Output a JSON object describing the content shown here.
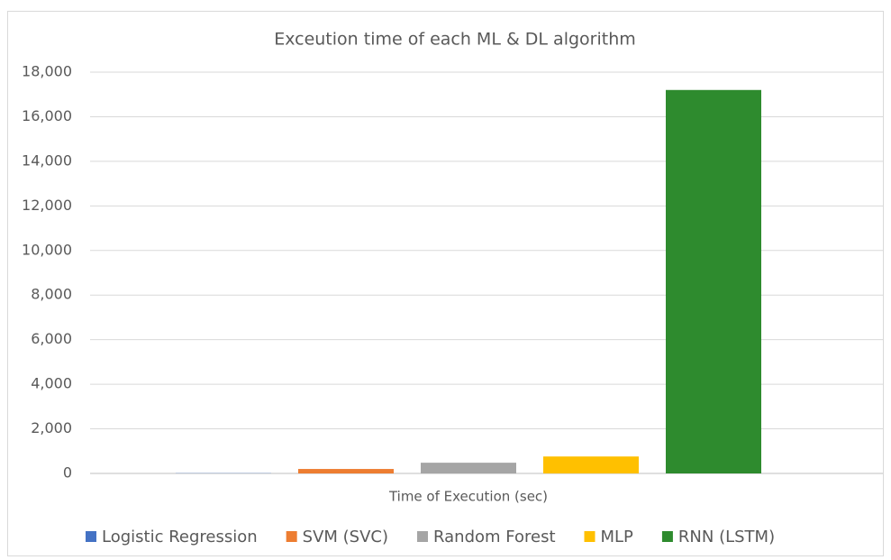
{
  "chart_data": {
    "type": "bar",
    "title": "Exceution time of each ML & DL algorithm",
    "categories": [
      "Time of Execution (sec)"
    ],
    "series": [
      {
        "name": "Logistic Regression",
        "color": "#4472c4",
        "values": [
          10
        ]
      },
      {
        "name": "SVM (SVC)",
        "color": "#ed7d31",
        "values": [
          200
        ]
      },
      {
        "name": "Random Forest",
        "color": "#a5a5a5",
        "values": [
          480
        ]
      },
      {
        "name": "MLP",
        "color": "#ffc000",
        "values": [
          760
        ]
      },
      {
        "name": "RNN (LSTM)",
        "color": "#2e8b2e",
        "values": [
          17200
        ]
      }
    ],
    "ylim": [
      0,
      18000
    ],
    "yticks": [
      {
        "value": 0,
        "label": "0"
      },
      {
        "value": 2000,
        "label": "2,000"
      },
      {
        "value": 4000,
        "label": "4,000"
      },
      {
        "value": 6000,
        "label": "6,000"
      },
      {
        "value": 8000,
        "label": "8,000"
      },
      {
        "value": 10000,
        "label": "10,000"
      },
      {
        "value": 12000,
        "label": "12,000"
      },
      {
        "value": 14000,
        "label": "14,000"
      },
      {
        "value": 16000,
        "label": "16,000"
      },
      {
        "value": 18000,
        "label": "18,000"
      }
    ],
    "grid": true,
    "legend": "bottom"
  }
}
